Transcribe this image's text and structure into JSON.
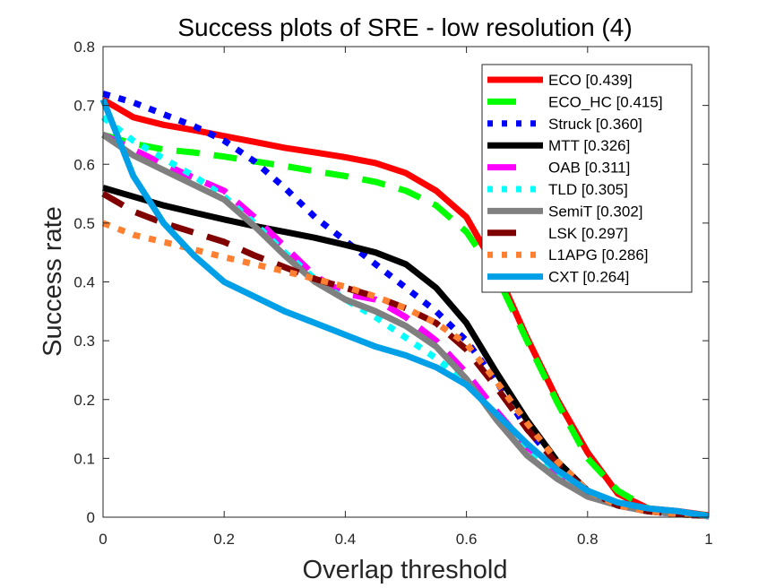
{
  "chart_data": {
    "type": "line",
    "title": "Success plots of SRE - low resolution (4)",
    "xlabel": "Overlap threshold",
    "ylabel": "Success rate",
    "xlim": [
      0,
      1
    ],
    "ylim": [
      0,
      0.8
    ],
    "xticks": [
      0,
      0.2,
      0.4,
      0.6,
      0.8,
      1
    ],
    "xtick_labels": [
      "0",
      "0.2",
      "0.4",
      "0.6",
      "0.8",
      "1"
    ],
    "yticks": [
      0,
      0.1,
      0.2,
      0.3,
      0.4,
      0.5,
      0.6,
      0.7,
      0.8
    ],
    "ytick_labels": [
      "0",
      "0.1",
      "0.2",
      "0.3",
      "0.4",
      "0.5",
      "0.6",
      "0.7",
      "0.8"
    ],
    "grid": false,
    "legend_position": "top-right",
    "x": [
      0,
      0.05,
      0.1,
      0.15,
      0.2,
      0.25,
      0.3,
      0.35,
      0.4,
      0.45,
      0.5,
      0.55,
      0.6,
      0.65,
      0.7,
      0.75,
      0.8,
      0.85,
      0.9,
      0.95,
      1
    ],
    "series": [
      {
        "name": "ECO [0.439]",
        "color": "#ff0000",
        "style": "solid",
        "values": [
          0.71,
          0.68,
          0.667,
          0.658,
          0.648,
          0.638,
          0.628,
          0.62,
          0.612,
          0.602,
          0.585,
          0.555,
          0.51,
          0.42,
          0.305,
          0.2,
          0.11,
          0.04,
          0.015,
          0.01,
          0.003
        ]
      },
      {
        "name": "ECO_HC [0.415]",
        "color": "#00ff00",
        "style": "dashed",
        "values": [
          0.65,
          0.635,
          0.625,
          0.62,
          0.613,
          0.605,
          0.597,
          0.588,
          0.58,
          0.57,
          0.555,
          0.53,
          0.485,
          0.41,
          0.3,
          0.195,
          0.1,
          0.045,
          0.015,
          0.008,
          0.003
        ]
      },
      {
        "name": "Struck [0.360]",
        "color": "#0000ff",
        "style": "dotted",
        "values": [
          0.72,
          0.705,
          0.685,
          0.665,
          0.64,
          0.605,
          0.56,
          0.51,
          0.47,
          0.43,
          0.39,
          0.35,
          0.3,
          0.23,
          0.15,
          0.09,
          0.045,
          0.02,
          0.01,
          0.005,
          0.002
        ]
      },
      {
        "name": "MTT [0.326]",
        "color": "#000000",
        "style": "solid",
        "values": [
          0.56,
          0.545,
          0.53,
          0.518,
          0.506,
          0.495,
          0.485,
          0.475,
          0.463,
          0.45,
          0.43,
          0.39,
          0.33,
          0.245,
          0.165,
          0.095,
          0.045,
          0.02,
          0.01,
          0.005,
          0.002
        ]
      },
      {
        "name": "OAB [0.311]",
        "color": "#ff00ff",
        "style": "dashed",
        "values": [
          0.65,
          0.625,
          0.6,
          0.577,
          0.555,
          0.51,
          0.46,
          0.41,
          0.38,
          0.37,
          0.34,
          0.3,
          0.245,
          0.18,
          0.12,
          0.075,
          0.04,
          0.02,
          0.01,
          0.005,
          0.002
        ]
      },
      {
        "name": "TLD [0.305]",
        "color": "#00ffff",
        "style": "dotted",
        "values": [
          0.68,
          0.64,
          0.61,
          0.58,
          0.545,
          0.5,
          0.45,
          0.405,
          0.37,
          0.34,
          0.305,
          0.27,
          0.23,
          0.17,
          0.11,
          0.07,
          0.04,
          0.02,
          0.01,
          0.005,
          0.002
        ]
      },
      {
        "name": "SemiT [0.302]",
        "color": "#808080",
        "style": "solid",
        "values": [
          0.65,
          0.615,
          0.59,
          0.565,
          0.54,
          0.495,
          0.445,
          0.4,
          0.37,
          0.35,
          0.325,
          0.29,
          0.235,
          0.165,
          0.105,
          0.065,
          0.035,
          0.02,
          0.01,
          0.005,
          0.002
        ]
      },
      {
        "name": "LSK [0.297]",
        "color": "#800000",
        "style": "dashed",
        "values": [
          0.55,
          0.52,
          0.5,
          0.484,
          0.468,
          0.445,
          0.425,
          0.405,
          0.39,
          0.375,
          0.355,
          0.33,
          0.285,
          0.22,
          0.15,
          0.09,
          0.045,
          0.02,
          0.01,
          0.005,
          0.002
        ]
      },
      {
        "name": "L1APG [0.286]",
        "color": "#ff8030",
        "style": "dotted",
        "values": [
          0.5,
          0.48,
          0.468,
          0.455,
          0.442,
          0.43,
          0.418,
          0.405,
          0.392,
          0.375,
          0.355,
          0.33,
          0.295,
          0.23,
          0.16,
          0.095,
          0.045,
          0.02,
          0.01,
          0.005,
          0.002
        ]
      },
      {
        "name": "CXT [0.264]",
        "color": "#00a0e8",
        "style": "solid",
        "values": [
          0.71,
          0.58,
          0.5,
          0.445,
          0.4,
          0.375,
          0.35,
          0.33,
          0.31,
          0.29,
          0.275,
          0.255,
          0.225,
          0.175,
          0.125,
          0.08,
          0.045,
          0.025,
          0.015,
          0.01,
          0.002
        ]
      }
    ]
  }
}
